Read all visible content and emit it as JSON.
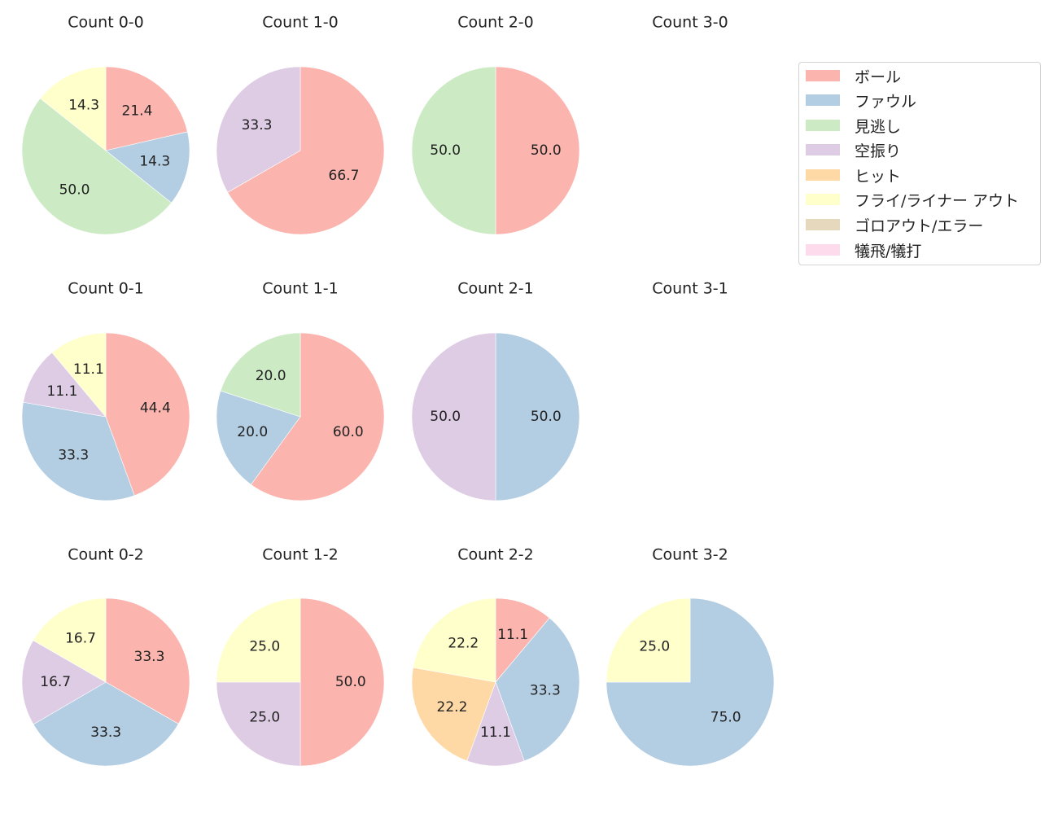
{
  "chart_data": {
    "type": "pie",
    "direction": "clockwise from top",
    "legend": {
      "position": "upper right",
      "entries": [
        {
          "label": "ボール",
          "color": "#fbb4ae"
        },
        {
          "label": "ファウル",
          "color": "#b3cde3"
        },
        {
          "label": "見逃し",
          "color": "#ccebc5"
        },
        {
          "label": "空振り",
          "color": "#decbe4"
        },
        {
          "label": "ヒット",
          "color": "#fed9a6"
        },
        {
          "label": "フライ/ライナー アウト",
          "color": "#ffffcc"
        },
        {
          "label": "ゴロアウト/エラー",
          "color": "#e5d8bd"
        },
        {
          "label": "犠飛/犠打",
          "color": "#fddaec"
        }
      ]
    },
    "charts": [
      {
        "title": "Count 0-0",
        "slices": [
          {
            "category": "ボール",
            "value": 21.4
          },
          {
            "category": "ファウル",
            "value": 14.3
          },
          {
            "category": "見逃し",
            "value": 50.0
          },
          {
            "category": "フライ/ライナー アウト",
            "value": 14.3
          }
        ]
      },
      {
        "title": "Count 1-0",
        "slices": [
          {
            "category": "ボール",
            "value": 66.7
          },
          {
            "category": "空振り",
            "value": 33.3
          }
        ]
      },
      {
        "title": "Count 2-0",
        "slices": [
          {
            "category": "ボール",
            "value": 50.0
          },
          {
            "category": "見逃し",
            "value": 50.0
          }
        ]
      },
      {
        "title": "Count 3-0",
        "slices": []
      },
      {
        "title": "Count 0-1",
        "slices": [
          {
            "category": "ボール",
            "value": 44.4
          },
          {
            "category": "ファウル",
            "value": 33.3
          },
          {
            "category": "空振り",
            "value": 11.1
          },
          {
            "category": "フライ/ライナー アウト",
            "value": 11.1
          }
        ]
      },
      {
        "title": "Count 1-1",
        "slices": [
          {
            "category": "ボール",
            "value": 60.0
          },
          {
            "category": "ファウル",
            "value": 20.0
          },
          {
            "category": "見逃し",
            "value": 20.0
          }
        ]
      },
      {
        "title": "Count 2-1",
        "slices": [
          {
            "category": "ファウル",
            "value": 50.0
          },
          {
            "category": "空振り",
            "value": 50.0
          }
        ]
      },
      {
        "title": "Count 3-1",
        "slices": []
      },
      {
        "title": "Count 0-2",
        "slices": [
          {
            "category": "ボール",
            "value": 33.3
          },
          {
            "category": "ファウル",
            "value": 33.3
          },
          {
            "category": "空振り",
            "value": 16.7
          },
          {
            "category": "フライ/ライナー アウト",
            "value": 16.7
          }
        ]
      },
      {
        "title": "Count 1-2",
        "slices": [
          {
            "category": "ボール",
            "value": 50.0
          },
          {
            "category": "空振り",
            "value": 25.0
          },
          {
            "category": "フライ/ライナー アウト",
            "value": 25.0
          }
        ]
      },
      {
        "title": "Count 2-2",
        "slices": [
          {
            "category": "ボール",
            "value": 11.1
          },
          {
            "category": "ファウル",
            "value": 33.3
          },
          {
            "category": "空振り",
            "value": 11.1
          },
          {
            "category": "ヒット",
            "value": 22.2
          },
          {
            "category": "フライ/ライナー アウト",
            "value": 22.2
          }
        ]
      },
      {
        "title": "Count 3-2",
        "slices": [
          {
            "category": "ファウル",
            "value": 75.0
          },
          {
            "category": "フライ/ライナー アウト",
            "value": 25.0
          }
        ]
      }
    ]
  }
}
